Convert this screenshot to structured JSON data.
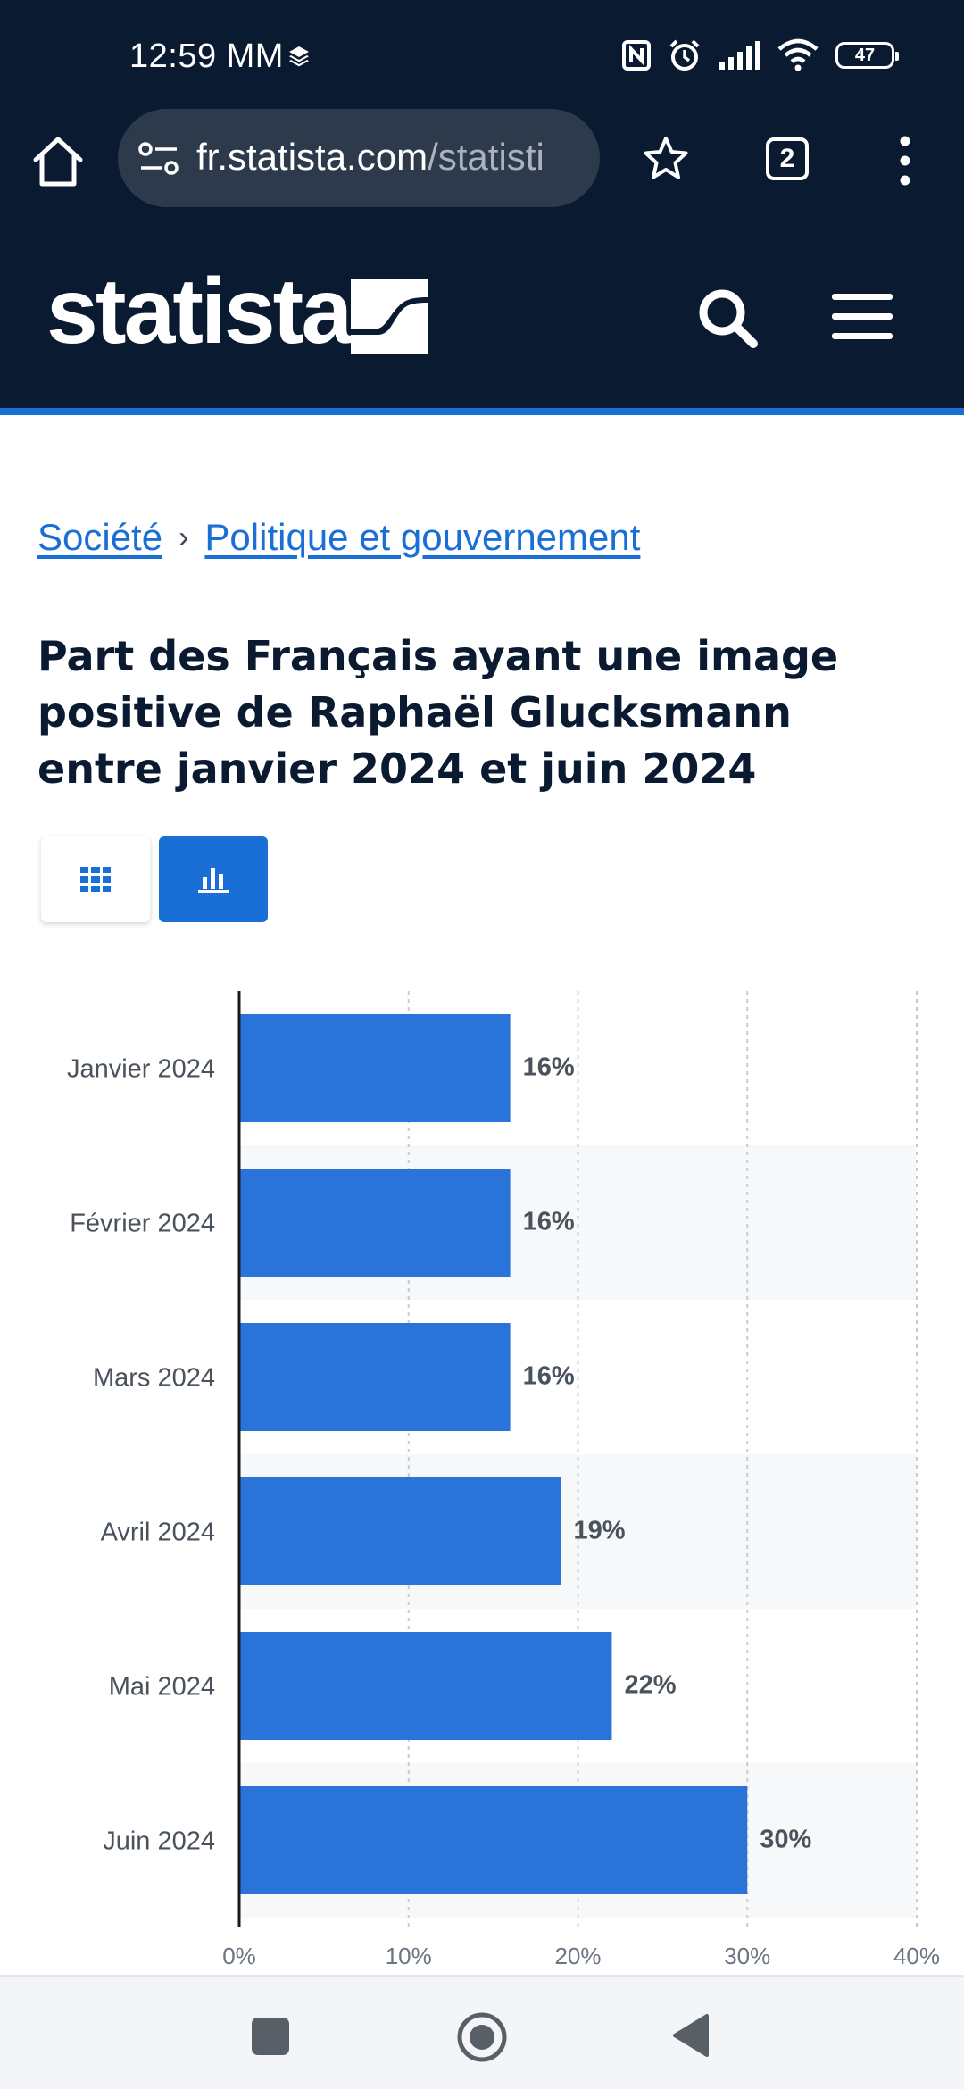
{
  "status_bar": {
    "time": "12:59 MM",
    "battery": "47"
  },
  "browser": {
    "url_host": "fr.statista.com",
    "url_path": "/statisti",
    "tab_count": "2"
  },
  "site": {
    "logo_text": "statista"
  },
  "breadcrumb": {
    "items": [
      "Société",
      "Politique et gouvernement"
    ],
    "separator": "›"
  },
  "page": {
    "title": "Part des Français ayant une image positive de Raphaël Glucksmann entre janvier 2024 et juin 2024"
  },
  "colors": {
    "header_bg": "#0a1a30",
    "accent": "#1a6fd6",
    "bar": "#2a74d9"
  },
  "chart_data": {
    "type": "bar",
    "orientation": "horizontal",
    "categories": [
      "Janvier 2024",
      "Février 2024",
      "Mars 2024",
      "Avril 2024",
      "Mai 2024",
      "Juin 2024"
    ],
    "values": [
      16,
      16,
      16,
      19,
      22,
      30
    ],
    "value_labels": [
      "16%",
      "16%",
      "16%",
      "19%",
      "22%",
      "30%"
    ],
    "x_ticks": [
      "0%",
      "10%",
      "20%",
      "30%",
      "40%"
    ],
    "xlim": [
      0,
      40
    ],
    "grid": true
  }
}
